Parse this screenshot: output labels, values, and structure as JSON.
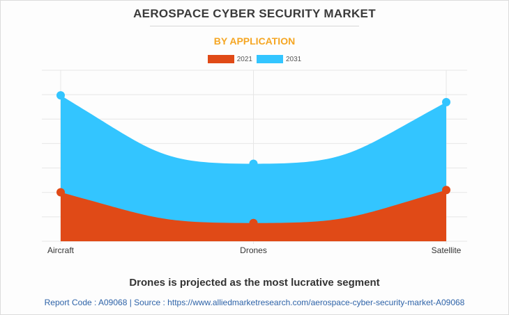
{
  "colors": {
    "series_2021": "#e04a17",
    "series_2031": "#33c5ff",
    "grid": "#e6e6e6",
    "tick_text": "#333333"
  },
  "chart_data": {
    "type": "area",
    "title": "AEROSPACE CYBER SECURITY MARKET",
    "subtitle": "BY APPLICATION",
    "categories": [
      "Aircraft",
      "Drones",
      "Satellite"
    ],
    "series": [
      {
        "name": "2021",
        "values": [
          21.5,
          8.0,
          22.5
        ]
      },
      {
        "name": "2031",
        "values": [
          64.0,
          34.0,
          61.0
        ]
      }
    ],
    "ylim": [
      0,
      75
    ],
    "grid": true,
    "legend": "top-center",
    "xlabel": "",
    "ylabel": ""
  },
  "caption": "Drones is projected as the most lucrative segment",
  "footer": "Report Code : A09068  |  Source : https://www.alliedmarketresearch.com/aerospace-cyber-security-market-A09068"
}
